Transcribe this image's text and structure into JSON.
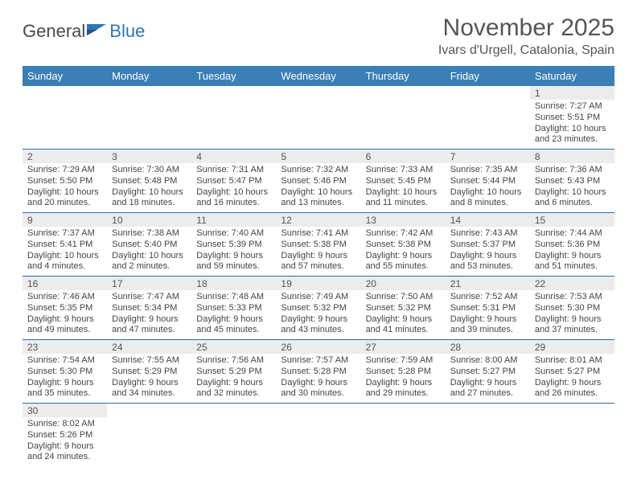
{
  "logo": {
    "text_general": "General",
    "text_blue": "Blue"
  },
  "header": {
    "month_title": "November 2025",
    "location": "Ivars d'Urgell, Catalonia, Spain"
  },
  "colors": {
    "header_bg": "#3b7fb6",
    "row_divider": "#2e6da4",
    "daynum_bg": "#ececec",
    "logo_blue": "#2e75b6"
  },
  "day_headers": [
    "Sunday",
    "Monday",
    "Tuesday",
    "Wednesday",
    "Thursday",
    "Friday",
    "Saturday"
  ],
  "weeks": [
    [
      {
        "n": "",
        "sr": "",
        "ss": "",
        "dl": ""
      },
      {
        "n": "",
        "sr": "",
        "ss": "",
        "dl": ""
      },
      {
        "n": "",
        "sr": "",
        "ss": "",
        "dl": ""
      },
      {
        "n": "",
        "sr": "",
        "ss": "",
        "dl": ""
      },
      {
        "n": "",
        "sr": "",
        "ss": "",
        "dl": ""
      },
      {
        "n": "",
        "sr": "",
        "ss": "",
        "dl": ""
      },
      {
        "n": "1",
        "sr": "Sunrise: 7:27 AM",
        "ss": "Sunset: 5:51 PM",
        "dl": "Daylight: 10 hours and 23 minutes."
      }
    ],
    [
      {
        "n": "2",
        "sr": "Sunrise: 7:29 AM",
        "ss": "Sunset: 5:50 PM",
        "dl": "Daylight: 10 hours and 20 minutes."
      },
      {
        "n": "3",
        "sr": "Sunrise: 7:30 AM",
        "ss": "Sunset: 5:48 PM",
        "dl": "Daylight: 10 hours and 18 minutes."
      },
      {
        "n": "4",
        "sr": "Sunrise: 7:31 AM",
        "ss": "Sunset: 5:47 PM",
        "dl": "Daylight: 10 hours and 16 minutes."
      },
      {
        "n": "5",
        "sr": "Sunrise: 7:32 AM",
        "ss": "Sunset: 5:46 PM",
        "dl": "Daylight: 10 hours and 13 minutes."
      },
      {
        "n": "6",
        "sr": "Sunrise: 7:33 AM",
        "ss": "Sunset: 5:45 PM",
        "dl": "Daylight: 10 hours and 11 minutes."
      },
      {
        "n": "7",
        "sr": "Sunrise: 7:35 AM",
        "ss": "Sunset: 5:44 PM",
        "dl": "Daylight: 10 hours and 8 minutes."
      },
      {
        "n": "8",
        "sr": "Sunrise: 7:36 AM",
        "ss": "Sunset: 5:43 PM",
        "dl": "Daylight: 10 hours and 6 minutes."
      }
    ],
    [
      {
        "n": "9",
        "sr": "Sunrise: 7:37 AM",
        "ss": "Sunset: 5:41 PM",
        "dl": "Daylight: 10 hours and 4 minutes."
      },
      {
        "n": "10",
        "sr": "Sunrise: 7:38 AM",
        "ss": "Sunset: 5:40 PM",
        "dl": "Daylight: 10 hours and 2 minutes."
      },
      {
        "n": "11",
        "sr": "Sunrise: 7:40 AM",
        "ss": "Sunset: 5:39 PM",
        "dl": "Daylight: 9 hours and 59 minutes."
      },
      {
        "n": "12",
        "sr": "Sunrise: 7:41 AM",
        "ss": "Sunset: 5:38 PM",
        "dl": "Daylight: 9 hours and 57 minutes."
      },
      {
        "n": "13",
        "sr": "Sunrise: 7:42 AM",
        "ss": "Sunset: 5:38 PM",
        "dl": "Daylight: 9 hours and 55 minutes."
      },
      {
        "n": "14",
        "sr": "Sunrise: 7:43 AM",
        "ss": "Sunset: 5:37 PM",
        "dl": "Daylight: 9 hours and 53 minutes."
      },
      {
        "n": "15",
        "sr": "Sunrise: 7:44 AM",
        "ss": "Sunset: 5:36 PM",
        "dl": "Daylight: 9 hours and 51 minutes."
      }
    ],
    [
      {
        "n": "16",
        "sr": "Sunrise: 7:46 AM",
        "ss": "Sunset: 5:35 PM",
        "dl": "Daylight: 9 hours and 49 minutes."
      },
      {
        "n": "17",
        "sr": "Sunrise: 7:47 AM",
        "ss": "Sunset: 5:34 PM",
        "dl": "Daylight: 9 hours and 47 minutes."
      },
      {
        "n": "18",
        "sr": "Sunrise: 7:48 AM",
        "ss": "Sunset: 5:33 PM",
        "dl": "Daylight: 9 hours and 45 minutes."
      },
      {
        "n": "19",
        "sr": "Sunrise: 7:49 AM",
        "ss": "Sunset: 5:32 PM",
        "dl": "Daylight: 9 hours and 43 minutes."
      },
      {
        "n": "20",
        "sr": "Sunrise: 7:50 AM",
        "ss": "Sunset: 5:32 PM",
        "dl": "Daylight: 9 hours and 41 minutes."
      },
      {
        "n": "21",
        "sr": "Sunrise: 7:52 AM",
        "ss": "Sunset: 5:31 PM",
        "dl": "Daylight: 9 hours and 39 minutes."
      },
      {
        "n": "22",
        "sr": "Sunrise: 7:53 AM",
        "ss": "Sunset: 5:30 PM",
        "dl": "Daylight: 9 hours and 37 minutes."
      }
    ],
    [
      {
        "n": "23",
        "sr": "Sunrise: 7:54 AM",
        "ss": "Sunset: 5:30 PM",
        "dl": "Daylight: 9 hours and 35 minutes."
      },
      {
        "n": "24",
        "sr": "Sunrise: 7:55 AM",
        "ss": "Sunset: 5:29 PM",
        "dl": "Daylight: 9 hours and 34 minutes."
      },
      {
        "n": "25",
        "sr": "Sunrise: 7:56 AM",
        "ss": "Sunset: 5:29 PM",
        "dl": "Daylight: 9 hours and 32 minutes."
      },
      {
        "n": "26",
        "sr": "Sunrise: 7:57 AM",
        "ss": "Sunset: 5:28 PM",
        "dl": "Daylight: 9 hours and 30 minutes."
      },
      {
        "n": "27",
        "sr": "Sunrise: 7:59 AM",
        "ss": "Sunset: 5:28 PM",
        "dl": "Daylight: 9 hours and 29 minutes."
      },
      {
        "n": "28",
        "sr": "Sunrise: 8:00 AM",
        "ss": "Sunset: 5:27 PM",
        "dl": "Daylight: 9 hours and 27 minutes."
      },
      {
        "n": "29",
        "sr": "Sunrise: 8:01 AM",
        "ss": "Sunset: 5:27 PM",
        "dl": "Daylight: 9 hours and 26 minutes."
      }
    ],
    [
      {
        "n": "30",
        "sr": "Sunrise: 8:02 AM",
        "ss": "Sunset: 5:26 PM",
        "dl": "Daylight: 9 hours and 24 minutes."
      },
      {
        "n": "",
        "sr": "",
        "ss": "",
        "dl": ""
      },
      {
        "n": "",
        "sr": "",
        "ss": "",
        "dl": ""
      },
      {
        "n": "",
        "sr": "",
        "ss": "",
        "dl": ""
      },
      {
        "n": "",
        "sr": "",
        "ss": "",
        "dl": ""
      },
      {
        "n": "",
        "sr": "",
        "ss": "",
        "dl": ""
      },
      {
        "n": "",
        "sr": "",
        "ss": "",
        "dl": ""
      }
    ]
  ]
}
